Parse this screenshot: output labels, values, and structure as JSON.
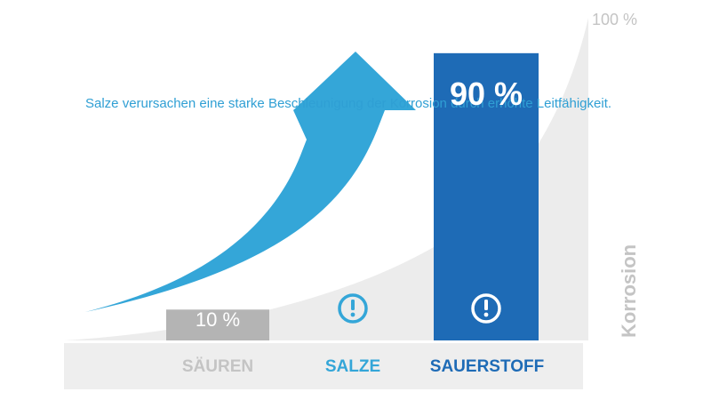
{
  "annotation": "Salze verursachen eine starke Beschleunigung der Korrosion durch erhöhte Leitfähigkeit.",
  "max_label": "100 %",
  "colors": {
    "saeuren": "#b4b4b4",
    "salze": "#34a6d8",
    "sauerstoff": "#1e6bb6",
    "arrow": "#34a6d8",
    "curve_area": "#ececec",
    "baseline_band": "#eeeeee",
    "axis_label": "#c4c4c4"
  },
  "chart_data": {
    "type": "bar",
    "categories": [
      "SÄUREN",
      "SALZE",
      "SAUERSTOFF"
    ],
    "values": [
      10,
      null,
      90
    ],
    "value_labels": [
      "10 %",
      "",
      "90 %"
    ],
    "warning_icons": [
      false,
      true,
      true
    ],
    "ylabel": "Korrosion",
    "ylim": [
      0,
      100
    ],
    "grid": false,
    "background": "exponential-curve-area",
    "trend_arrow": "rising"
  }
}
